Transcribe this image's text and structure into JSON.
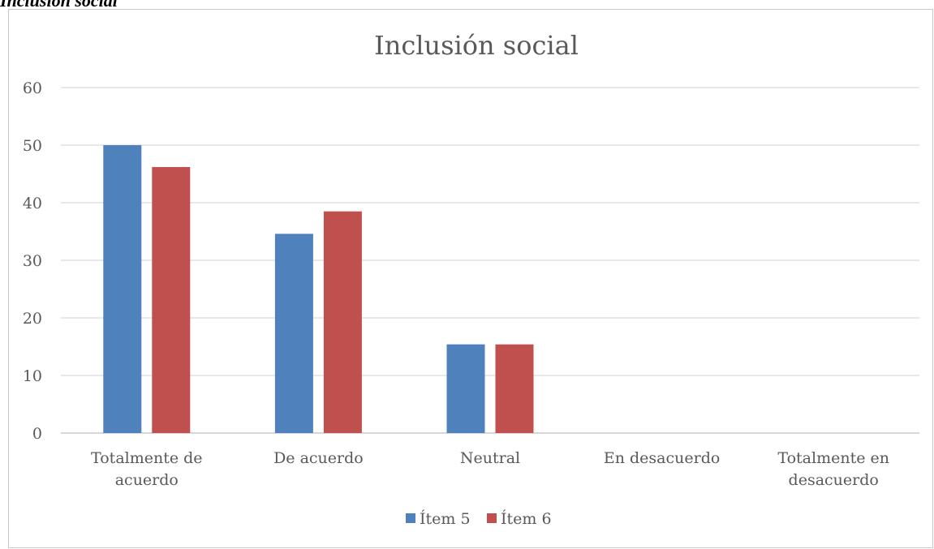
{
  "caption": "Inclusión social",
  "chart_data": {
    "type": "bar",
    "title": "Inclusión social",
    "categories": [
      [
        "Totalmente de",
        "acuerdo"
      ],
      [
        "De acuerdo"
      ],
      [
        "Neutral"
      ],
      [
        "En desacuerdo"
      ],
      [
        "Totalmente en",
        "desacuerdo"
      ]
    ],
    "series": [
      {
        "name": "Ítem 5",
        "color": "#4f81bd",
        "values": [
          50,
          34.6,
          15.4,
          0,
          0
        ]
      },
      {
        "name": "Ítem 6",
        "color": "#c0504d",
        "values": [
          46.2,
          38.5,
          15.4,
          0,
          0
        ]
      }
    ],
    "ylim": [
      0,
      60
    ],
    "yticks": [
      "0",
      "10",
      "20",
      "30",
      "40",
      "50",
      "60"
    ],
    "grid": true,
    "legend_position": "bottom"
  }
}
